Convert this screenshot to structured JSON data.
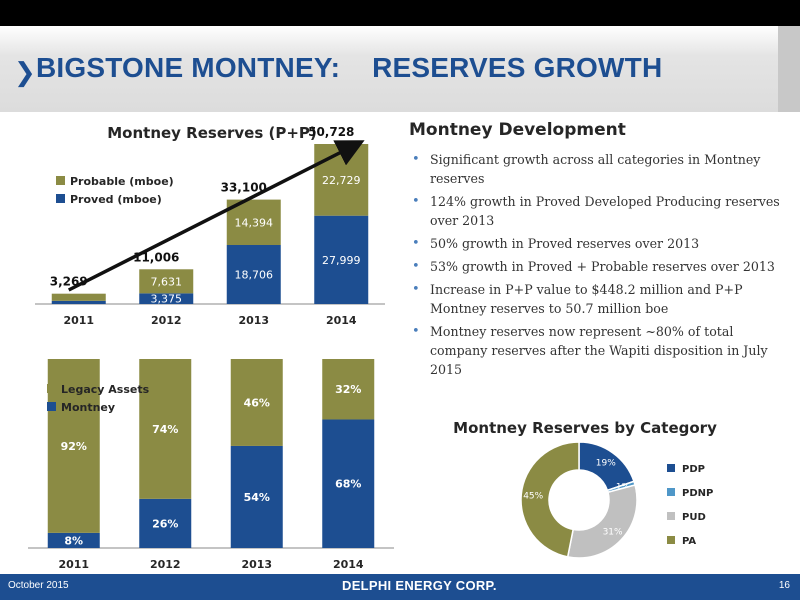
{
  "slide": {
    "title": "BIGSTONE MONTNEY:    RESERVES GROWTH",
    "chevron": "❯"
  },
  "development": {
    "title": "Montney Development",
    "bullets": [
      "Significant growth across all categories in Montney reserves",
      "124% growth in Proved Developed Producing reserves over 2013",
      "50% growth in Proved reserves over 2013",
      "53% growth in Proved + Probable reserves over 2013",
      "Increase in P+P value to $448.2 million and P+P Montney reserves to 50.7 million boe",
      "Montney reserves now represent ~80% of total company reserves after the Wapiti disposition in July 2015"
    ]
  },
  "footer": {
    "date": "October 2015",
    "brand": "DELPHI ENERGY CORP.",
    "page": "16"
  },
  "colors": {
    "navy": "#1d4e91",
    "olive": "#8b8b44",
    "light_blue": "#4f97c8",
    "light_gray": "#c0c0c0",
    "bullet": "#4a7ebb"
  },
  "chart_data": [
    {
      "type": "bar",
      "stacked": true,
      "title": "Montney Reserves (P+P)",
      "categories": [
        "2011",
        "2012",
        "2013",
        "2014"
      ],
      "series": [
        {
          "name": "Proved (mboe)",
          "values": [
            1000,
            3375,
            18706,
            27999
          ],
          "labels": [
            "",
            "3,375",
            "18,706",
            "27,999"
          ]
        },
        {
          "name": "Probable (mboe)",
          "values": [
            2269,
            7631,
            14394,
            22729
          ],
          "labels": [
            "",
            "7,631",
            "14,394",
            "22,729"
          ]
        }
      ],
      "totals": [
        "3,269",
        "11,006",
        "33,100",
        "50,728"
      ],
      "ylim": [
        0,
        55000
      ],
      "legend": "top-left",
      "trend_arrow": true
    },
    {
      "type": "bar",
      "stacked": true,
      "title": "",
      "categories": [
        "2011",
        "2012",
        "2013",
        "2014"
      ],
      "series": [
        {
          "name": "Montney",
          "values": [
            8,
            26,
            54,
            68
          ],
          "labels": [
            "8%",
            "26%",
            "54%",
            "68%"
          ]
        },
        {
          "name": "Legacy Assets",
          "values": [
            92,
            74,
            46,
            32
          ],
          "labels": [
            "92%",
            "74%",
            "46%",
            "32%"
          ]
        }
      ],
      "ylim": [
        0,
        100
      ],
      "legend": "top-left"
    },
    {
      "type": "pie",
      "donut": true,
      "title": "Montney Reserves by Category",
      "slices": [
        {
          "name": "PDP",
          "value": 19,
          "label": "19%"
        },
        {
          "name": "PDNP",
          "value": 1,
          "label": "1%"
        },
        {
          "name": "PUD",
          "value": 31,
          "label": "31%"
        },
        {
          "name": "PA",
          "value": 45,
          "label": "45%"
        }
      ],
      "legend": "right"
    }
  ]
}
